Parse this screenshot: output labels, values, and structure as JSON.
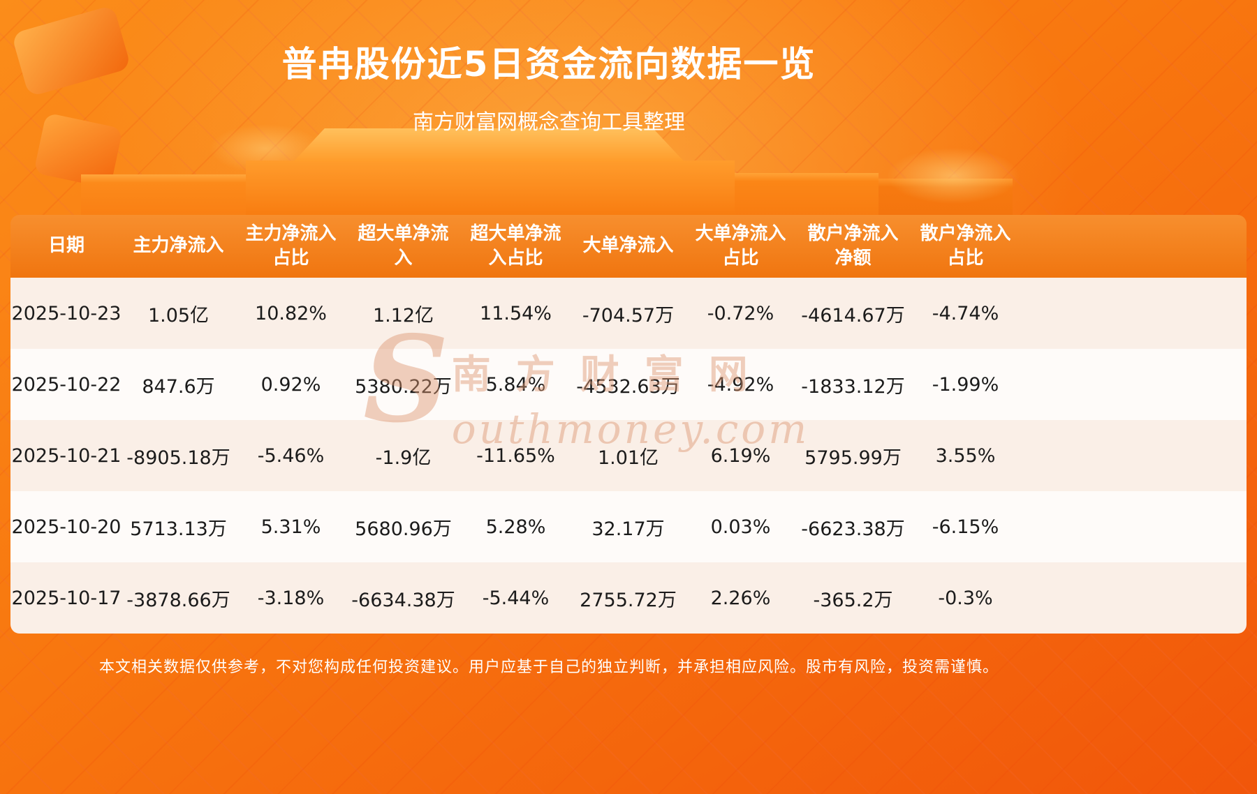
{
  "header": {
    "title": "普冉股份近5日资金流向数据一览",
    "subtitle": "南方财富网概念查询工具整理"
  },
  "chart_data": {
    "type": "table",
    "title": "普冉股份近5日资金流向数据一览",
    "columns": [
      "日期",
      "主力净流入",
      "主力净流入占比",
      "超大单净流入",
      "超大单净流入占比",
      "大单净流入",
      "大单净流入占比",
      "散户净流入净额",
      "散户净流入占比"
    ],
    "rows": [
      [
        "2025-10-23",
        "1.05亿",
        "10.82%",
        "1.12亿",
        "11.54%",
        "-704.57万",
        "-0.72%",
        "-4614.67万",
        "-4.74%"
      ],
      [
        "2025-10-22",
        "847.6万",
        "0.92%",
        "5380.22万",
        "5.84%",
        "-4532.63万",
        "-4.92%",
        "-1833.12万",
        "-1.99%"
      ],
      [
        "2025-10-21",
        "-8905.18万",
        "-5.46%",
        "-1.9亿",
        "-11.65%",
        "1.01亿",
        "6.19%",
        "5795.99万",
        "3.55%"
      ],
      [
        "2025-10-20",
        "5713.13万",
        "5.31%",
        "5680.96万",
        "5.28%",
        "32.17万",
        "0.03%",
        "-6623.38万",
        "-6.15%"
      ],
      [
        "2025-10-17",
        "-3878.66万",
        "-3.18%",
        "-6634.38万",
        "-5.44%",
        "2755.72万",
        "2.26%",
        "-365.2万",
        "-0.3%"
      ]
    ]
  },
  "watermark": {
    "initial": "S",
    "line1": "南方财富网",
    "line2": "outhmoney.com"
  },
  "footer": {
    "disclaimer": "本文相关数据仅供参考，不对您构成任何投资建议。用户应基于自己的独立判断，并承担相应风险。股市有风险，投资需谨慎。"
  },
  "colors": {
    "header_bg": "#f0750f",
    "header_bg_light": "#f78f2e",
    "header_text": "#ffffff",
    "row_odd": "#faefe7",
    "row_even": "#fefbf9",
    "cell_text": "#1b1b1b",
    "title_text": "#ffffff",
    "watermark_color": "#dd9671",
    "page_accent": "#f8770f"
  }
}
